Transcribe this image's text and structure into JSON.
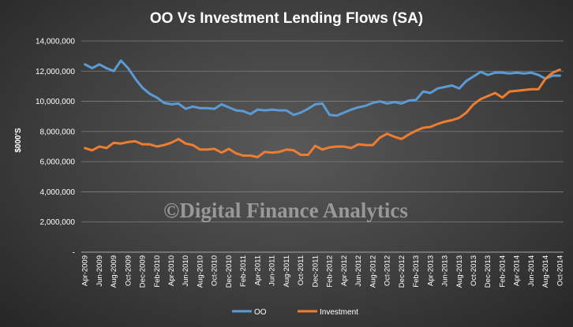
{
  "chart_data": {
    "type": "line",
    "title": "OO Vs Investment Lending Flows (SA)",
    "ylabel": "$000'S",
    "ylim": [
      0,
      14000000
    ],
    "yticks": [
      "-",
      "2,000,000",
      "4,000,000",
      "6,000,000",
      "8,000,000",
      "10,000,000",
      "12,000,000",
      "14,000,000"
    ],
    "ytick_values": [
      0,
      2000000,
      4000000,
      6000000,
      8000000,
      10000000,
      12000000,
      14000000
    ],
    "grid": true,
    "legend": "bottom",
    "x_tick_labels": [
      "Apr-2009",
      "Jun-2009",
      "Aug-2009",
      "Oct-2009",
      "Dec-2009",
      "Feb-2010",
      "Apr-2010",
      "Jun-2010",
      "Aug-2010",
      "Oct-2010",
      "Dec-2010",
      "Feb-2011",
      "Apr-2011",
      "Jun-2011",
      "Aug-2011",
      "Oct-2011",
      "Dec-2011",
      "Feb-2012",
      "Apr-2012",
      "Jun-2012",
      "Aug-2012",
      "Oct-2012",
      "Dec-2012",
      "Feb-2013",
      "Apr-2013",
      "Jun-2013",
      "Aug-2013",
      "Oct-2013",
      "Dec-2013",
      "Feb-2014",
      "Apr-2014",
      "Jun-2014",
      "Aug-2014",
      "Oct-2014"
    ],
    "x": [
      "Apr-2009",
      "May-2009",
      "Jun-2009",
      "Jul-2009",
      "Aug-2009",
      "Sep-2009",
      "Oct-2009",
      "Nov-2009",
      "Dec-2009",
      "Jan-2010",
      "Feb-2010",
      "Mar-2010",
      "Apr-2010",
      "May-2010",
      "Jun-2010",
      "Jul-2010",
      "Aug-2010",
      "Sep-2010",
      "Oct-2010",
      "Nov-2010",
      "Dec-2010",
      "Jan-2011",
      "Feb-2011",
      "Mar-2011",
      "Apr-2011",
      "May-2011",
      "Jun-2011",
      "Jul-2011",
      "Aug-2011",
      "Sep-2011",
      "Oct-2011",
      "Nov-2011",
      "Dec-2011",
      "Jan-2012",
      "Feb-2012",
      "Mar-2012",
      "Apr-2012",
      "May-2012",
      "Jun-2012",
      "Jul-2012",
      "Aug-2012",
      "Sep-2012",
      "Oct-2012",
      "Nov-2012",
      "Dec-2012",
      "Jan-2013",
      "Feb-2013",
      "Mar-2013",
      "Apr-2013",
      "May-2013",
      "Jun-2013",
      "Jul-2013",
      "Aug-2013",
      "Sep-2013",
      "Oct-2013",
      "Nov-2013",
      "Dec-2013",
      "Jan-2014",
      "Feb-2014",
      "Mar-2014",
      "Apr-2014",
      "May-2014",
      "Jun-2014",
      "Jul-2014",
      "Aug-2014",
      "Sep-2014",
      "Oct-2014"
    ],
    "series": [
      {
        "name": "OO",
        "color": "#5b9bd5",
        "values": [
          12450000,
          12200000,
          12450000,
          12200000,
          12000000,
          12700000,
          12200000,
          11500000,
          10900000,
          10500000,
          10250000,
          9900000,
          9800000,
          9850000,
          9500000,
          9650000,
          9550000,
          9550000,
          9500000,
          9800000,
          9600000,
          9400000,
          9350000,
          9150000,
          9450000,
          9400000,
          9450000,
          9400000,
          9400000,
          9100000,
          9250000,
          9500000,
          9800000,
          9850000,
          9100000,
          9050000,
          9250000,
          9450000,
          9600000,
          9700000,
          9900000,
          10000000,
          9850000,
          9950000,
          9850000,
          10050000,
          10100000,
          10650000,
          10550000,
          10850000,
          10950000,
          11050000,
          10850000,
          11350000,
          11650000,
          11950000,
          11750000,
          11900000,
          11900000,
          11850000,
          11900000,
          11850000,
          11900000,
          11750000,
          11500000,
          11700000,
          11700000
        ]
      },
      {
        "name": "Investment",
        "color": "#ed7d31",
        "values": [
          6900000,
          6750000,
          7000000,
          6900000,
          7250000,
          7200000,
          7300000,
          7350000,
          7150000,
          7150000,
          7000000,
          7100000,
          7250000,
          7500000,
          7200000,
          7100000,
          6800000,
          6800000,
          6850000,
          6600000,
          6850000,
          6550000,
          6400000,
          6400000,
          6300000,
          6650000,
          6600000,
          6650000,
          6800000,
          6750000,
          6450000,
          6450000,
          7050000,
          6800000,
          6950000,
          7000000,
          7000000,
          6900000,
          7150000,
          7100000,
          7100000,
          7600000,
          7850000,
          7650000,
          7500000,
          7800000,
          8050000,
          8250000,
          8300000,
          8500000,
          8650000,
          8750000,
          8900000,
          9250000,
          9800000,
          10150000,
          10350000,
          10550000,
          10250000,
          10650000,
          10700000,
          10750000,
          10800000,
          10800000,
          11500000,
          11900000,
          12100000
        ]
      }
    ],
    "annotations": [
      "©Digital Finance Analytics"
    ]
  }
}
